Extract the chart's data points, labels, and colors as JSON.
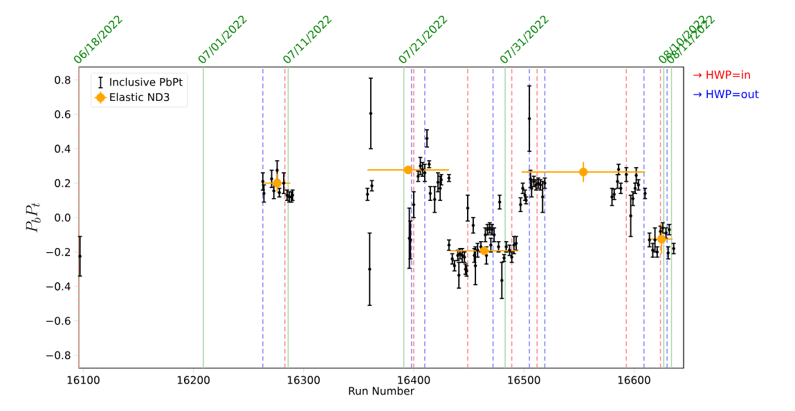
{
  "chart_data": {
    "type": "scatter",
    "xlabel": "Run Number",
    "ylabel": "P_bP_t",
    "xlim": [
      16096,
      16645
    ],
    "ylim": [
      -0.875,
      0.875
    ],
    "xticks": [
      16100,
      16200,
      16300,
      16400,
      16500,
      16600
    ],
    "yticks": [
      {
        "value": -0.8,
        "label": "−0.8"
      },
      {
        "value": -0.6,
        "label": "−0.6"
      },
      {
        "value": -0.4,
        "label": "−0.4"
      },
      {
        "value": -0.2,
        "label": "−0.2"
      },
      {
        "value": 0,
        "label": "0.0"
      },
      0.2,
      0.4,
      0.6,
      0.8
    ],
    "legend": "top left",
    "series": [
      {
        "name": "Inclusive PbPt",
        "type": "scatter",
        "color": "#000000",
        "marker": "circle",
        "x": [
          16097,
          16263,
          16264,
          16271,
          16273,
          16276,
          16278,
          16282,
          16285,
          16287,
          16289,
          16290,
          16361,
          16360,
          16358,
          16362,
          16396,
          16397,
          16400,
          16404,
          16406,
          16408,
          16410,
          16412,
          16414,
          16415,
          16419,
          16422,
          16424,
          16425,
          16432,
          16432,
          16435,
          16437,
          16441,
          16440,
          16442,
          16444,
          16446,
          16447,
          16449,
          16448,
          16454,
          16456,
          16455,
          16458,
          16461,
          16466,
          16465,
          16467,
          16469,
          16471,
          16473,
          16470,
          16478,
          16480,
          16482,
          16477,
          16484,
          16487,
          16489,
          16491,
          16493,
          16497,
          16499,
          16501,
          16502,
          16505,
          16506,
          16507,
          16509,
          16511,
          16513,
          16515,
          16517,
          16519,
          16580,
          16582,
          16585,
          16586,
          16588,
          16593,
          16597,
          16599,
          16601,
          16602,
          16604,
          16610,
          16614,
          16617,
          16619,
          16621,
          16624,
          16626,
          16629,
          16632,
          16631,
          16636
        ],
        "values": [
          -0.225,
          0.21,
          0.14,
          0.225,
          0.155,
          0.275,
          0.145,
          0.2,
          0.13,
          0.12,
          0.12,
          0.13,
          0.605,
          -0.3,
          0.135,
          0.185,
          -0.12,
          -0.13,
          0.075,
          0.24,
          0.3,
          0.28,
          0.26,
          0.46,
          0.31,
          0.14,
          0.105,
          0.205,
          0.17,
          0.22,
          0.23,
          -0.16,
          -0.24,
          -0.28,
          -0.335,
          -0.22,
          -0.21,
          -0.22,
          -0.23,
          -0.3,
          0.055,
          -0.31,
          -0.045,
          -0.28,
          -0.22,
          -0.19,
          -0.17,
          -0.22,
          -0.1,
          -0.07,
          -0.06,
          -0.07,
          -0.1,
          -0.16,
          0.09,
          -0.365,
          -0.235,
          -0.17,
          -0.17,
          -0.19,
          -0.23,
          -0.16,
          -0.15,
          0.075,
          0.17,
          0.13,
          0.1,
          0.575,
          0.225,
          0.17,
          0.21,
          0.19,
          0.2,
          0.19,
          0.12,
          0.2,
          0.12,
          0.135,
          0.21,
          0.28,
          0.17,
          0.25,
          0.01,
          0.11,
          0.17,
          0.245,
          0.19,
          0.14,
          -0.13,
          -0.19,
          -0.13,
          -0.2,
          -0.08,
          -0.06,
          -0.09,
          -0.07,
          -0.205,
          -0.18
        ],
        "errors": [
          0.115,
          0.05,
          0.05,
          0.05,
          0.045,
          0.055,
          0.025,
          0.06,
          0.03,
          0.03,
          0.03,
          0.03,
          0.205,
          0.21,
          0.035,
          0.03,
          0.175,
          0.11,
          0.075,
          0.03,
          0.05,
          0.04,
          0.05,
          0.05,
          0.02,
          0.04,
          0.075,
          0.055,
          0.07,
          0.03,
          0.02,
          0.03,
          0.03,
          0.03,
          0.075,
          0.03,
          0.03,
          0.04,
          0.03,
          0.03,
          0.075,
          0.03,
          0.045,
          0.11,
          0.04,
          0.04,
          0.03,
          0.05,
          0.04,
          0.03,
          0.03,
          0.03,
          0.04,
          0.04,
          0.04,
          0.105,
          0.02,
          0.03,
          0.03,
          0.03,
          0.03,
          0.05,
          0.04,
          0.04,
          0.03,
          0.03,
          0.02,
          0.19,
          0.05,
          0.05,
          0.03,
          0.03,
          0.03,
          0.03,
          0.09,
          0.03,
          0.05,
          0.03,
          0.04,
          0.03,
          0.03,
          0.04,
          0.12,
          0.04,
          0.03,
          0.045,
          0.03,
          0.03,
          0.04,
          0.04,
          0.07,
          0.03,
          0.03,
          0.03,
          0.03,
          0.03,
          0.035,
          0.03
        ]
      },
      {
        "name": "Elastic ND3",
        "type": "scatter",
        "color": "#ffa500",
        "marker": "circle",
        "x": [
          16276,
          16395,
          16464,
          16554,
          16625
        ],
        "values": [
          0.2,
          0.277,
          -0.193,
          0.265,
          -0.125
        ],
        "errors": [
          0.055,
          0.02,
          0.02,
          0.058,
          0.085
        ],
        "xerrors": [
          12,
          37,
          31,
          56,
          10
        ]
      }
    ],
    "ref_lines": [
      {
        "axis": "x",
        "value": 16096,
        "color": "#a6d3a6",
        "line_style": "solid"
      },
      {
        "axis": "x",
        "value": 16209,
        "color": "#a6d3a6",
        "line_style": "solid"
      },
      {
        "axis": "x",
        "value": 16286,
        "color": "#a6d3a6",
        "line_style": "solid"
      },
      {
        "axis": "x",
        "value": 16391,
        "color": "#a6d3a6",
        "line_style": "solid"
      },
      {
        "axis": "x",
        "value": 16483,
        "color": "#a6d3a6",
        "line_style": "solid"
      },
      {
        "axis": "x",
        "value": 16627,
        "color": "#a6d3a6",
        "line_style": "solid"
      },
      {
        "axis": "x",
        "value": 16634,
        "color": "#a6d3a6",
        "line_style": "solid"
      },
      {
        "axis": "x",
        "value": 16096,
        "color": "#ff8080",
        "line_style": "dashed"
      },
      {
        "axis": "x",
        "value": 16283,
        "color": "#ff8080",
        "line_style": "dashed"
      },
      {
        "axis": "x",
        "value": 16400,
        "color": "#ff8080",
        "line_style": "dashed"
      },
      {
        "axis": "x",
        "value": 16449,
        "color": "#ff8080",
        "line_style": "dashed"
      },
      {
        "axis": "x",
        "value": 16489,
        "color": "#ff8080",
        "line_style": "dashed"
      },
      {
        "axis": "x",
        "value": 16512,
        "color": "#ff8080",
        "line_style": "dashed"
      },
      {
        "axis": "x",
        "value": 16593,
        "color": "#ff8080",
        "line_style": "dashed"
      },
      {
        "axis": "x",
        "value": 16624,
        "color": "#ff8080",
        "line_style": "dashed"
      },
      {
        "axis": "x",
        "value": 16263,
        "color": "#8080ff",
        "line_style": "dashed"
      },
      {
        "axis": "x",
        "value": 16398,
        "color": "#8080ff",
        "line_style": "dashed"
      },
      {
        "axis": "x",
        "value": 16410,
        "color": "#8080ff",
        "line_style": "dashed"
      },
      {
        "axis": "x",
        "value": 16472,
        "color": "#8080ff",
        "line_style": "dashed"
      },
      {
        "axis": "x",
        "value": 16505,
        "color": "#8080ff",
        "line_style": "dashed"
      },
      {
        "axis": "x",
        "value": 16519,
        "color": "#8080ff",
        "line_style": "dashed"
      },
      {
        "axis": "x",
        "value": 16609,
        "color": "#8080ff",
        "line_style": "dashed"
      },
      {
        "axis": "x",
        "value": 16630,
        "color": "#8080ff",
        "line_style": "dashed"
      }
    ],
    "annotations": [
      "→ HWP=in",
      "→ HWP=out",
      {
        "text": "06/18/2022",
        "x": 16096,
        "y": 0.875
      },
      {
        "text": "07/01/2022",
        "x": 16209,
        "y": 0.875
      },
      {
        "text": "07/11/2022",
        "x": 16286,
        "y": 0.875
      },
      {
        "text": "07/21/2022",
        "x": 16391,
        "y": 0.875
      },
      {
        "text": "07/31/2022",
        "x": 16483,
        "y": 0.875
      },
      {
        "text": "08/10/2022",
        "x": 16627,
        "y": 0.875
      },
      {
        "text": "08/11/2022",
        "x": 16634,
        "y": 0.875
      }
    ]
  }
}
